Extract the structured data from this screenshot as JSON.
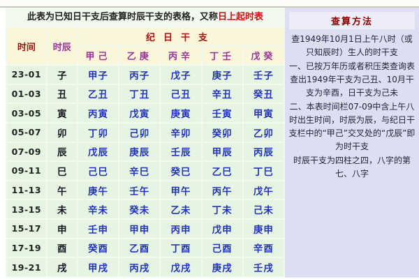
{
  "page": {
    "title_prefix": "此表为已知日干支后查算时辰干支的表格，又称",
    "title_highlight": "日上起时表"
  },
  "main_table": {
    "col_headers": {
      "time": "时间",
      "branch": "时辰"
    },
    "group_header": "纪日干支",
    "stem_headers": [
      "甲己",
      "乙庚",
      "丙辛",
      "丁壬",
      "戊癸"
    ],
    "rows": [
      {
        "time": "23-01",
        "branch": "子",
        "cells": [
          "甲子",
          "丙子",
          "戊子",
          "庚子",
          "壬子"
        ]
      },
      {
        "time": "01-03",
        "branch": "丑",
        "cells": [
          "乙丑",
          "丁丑",
          "己丑",
          "辛丑",
          "癸丑"
        ]
      },
      {
        "time": "03-05",
        "branch": "寅",
        "cells": [
          "丙寅",
          "戊寅",
          "庚寅",
          "壬寅",
          "甲寅"
        ]
      },
      {
        "time": "05-07",
        "branch": "卯",
        "cells": [
          "丁卯",
          "己卯",
          "辛卯",
          "癸卯",
          "乙卯"
        ]
      },
      {
        "time": "07-09",
        "branch": "辰",
        "cells": [
          "戊辰",
          "庚辰",
          "壬辰",
          "甲辰",
          "丙辰"
        ]
      },
      {
        "time": "09-11",
        "branch": "巳",
        "cells": [
          "己巳",
          "辛巳",
          "癸巳",
          "乙巳",
          "丁巳"
        ]
      },
      {
        "time": "11-13",
        "branch": "午",
        "cells": [
          "庚午",
          "壬午",
          "甲午",
          "丙午",
          "戊午"
        ]
      },
      {
        "time": "13-15",
        "branch": "未",
        "cells": [
          "辛未",
          "癸未",
          "乙未",
          "丁未",
          "己未"
        ]
      },
      {
        "time": "15-17",
        "branch": "申",
        "cells": [
          "壬申",
          "甲申",
          "丙申",
          "戊申",
          "庚申"
        ]
      },
      {
        "time": "17-19",
        "branch": "酉",
        "cells": [
          "癸酉",
          "乙酉",
          "丁酉",
          "己酉",
          "辛酉"
        ]
      },
      {
        "time": "19-21",
        "branch": "戌",
        "cells": [
          "甲戌",
          "丙戌",
          "戊戌",
          "庚戌",
          "壬戌"
        ]
      }
    ]
  },
  "method_panel": {
    "title": "查算方法",
    "paragraphs": [
      "查1949年10月1日上午八时（或只知辰时）生人的时干支",
      "一、已按万年历或者积压类查询表查出1949年干支为己丑、10月干支为辛酉，日干支为己未",
      "二、本表时间栏07-09中含上午八时出生时间，时辰为辰，与纪日干支栏中的“甲己”交叉处的“戊辰”即为时干支",
      "时辰干支为四柱之四，八字的第七、八字"
    ]
  },
  "colors": {
    "title_highlight_red": "#cc1111",
    "header_maroon": "#8b0000",
    "header_red": "#aa1111",
    "header_purple": "#993399",
    "cell_blue": "#2233bb",
    "table_green_bg": "#e6f5e2",
    "header_cream_bg": "#fbf5da",
    "panel_lavender_bg": "#dedef2",
    "panel_titlebar_bg": "#edecf8"
  }
}
